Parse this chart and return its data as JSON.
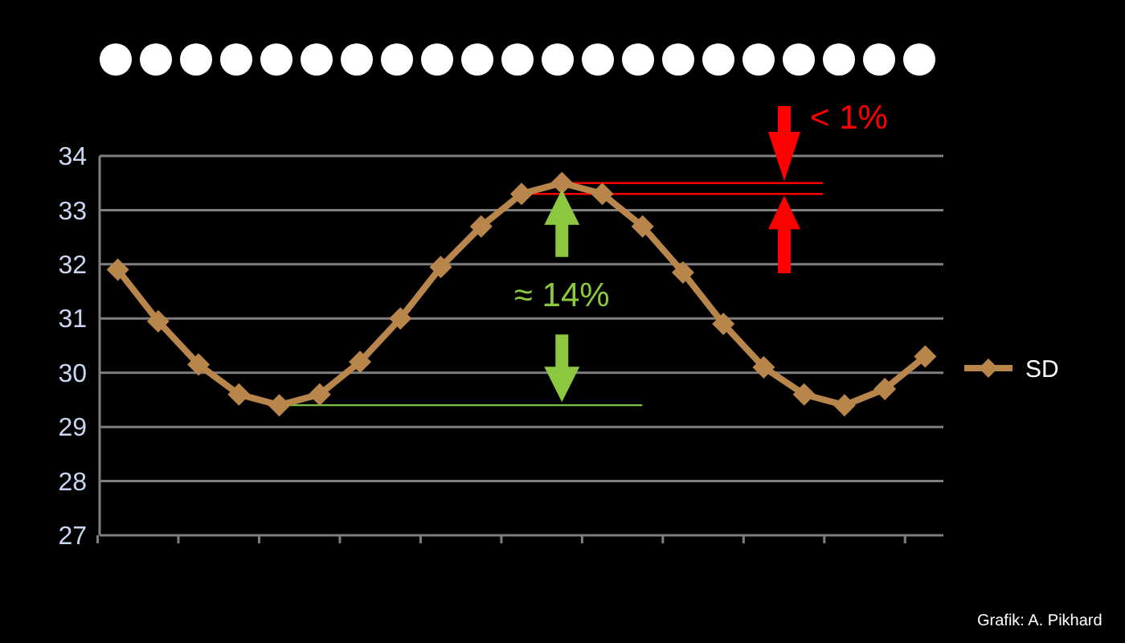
{
  "chart_data": {
    "type": "line",
    "categories": [
      null,
      null,
      null,
      null,
      null,
      null,
      null,
      null,
      null,
      null,
      null,
      null,
      null,
      null,
      null,
      null,
      null,
      null,
      null,
      null,
      null
    ],
    "series": [
      {
        "name": "SD",
        "color": "#b8864b",
        "values": [
          31.9,
          30.95,
          30.15,
          29.6,
          29.4,
          29.6,
          30.2,
          31.0,
          31.95,
          32.7,
          33.3,
          33.5,
          33.3,
          32.7,
          31.85,
          30.9,
          30.1,
          29.6,
          29.4,
          29.7,
          30.3
        ]
      }
    ],
    "ylim": [
      27,
      34
    ],
    "yticks": [
      27,
      28,
      29,
      30,
      31,
      32,
      33,
      34
    ],
    "grid": "y",
    "legend": "right",
    "marker": "diamond",
    "line_style": "solid",
    "ref_lines": [
      {
        "axis": "y",
        "value": 29.4,
        "color": "#7cc142"
      },
      {
        "axis": "y",
        "value": 33.5,
        "color": "#ff0000"
      },
      {
        "axis": "y",
        "value": 33.3,
        "color": "#ff0000"
      }
    ],
    "annotations": [
      "≈ 14%",
      "< 1%",
      "Grafik: A. Pikhard"
    ]
  }
}
